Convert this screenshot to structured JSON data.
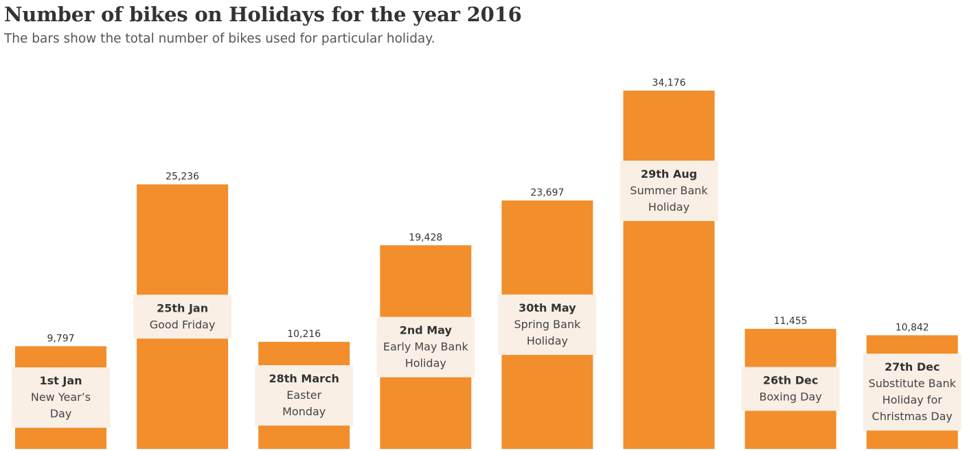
{
  "title": "Number of bikes on Holidays for the year 2016",
  "subtitle": "The bars show the total number of bikes used for particular holiday.",
  "colors": {
    "bar": "#f28e2b",
    "label_box": "#f9efe5",
    "text": "#333333"
  },
  "chart_data": {
    "type": "bar",
    "title": "Number of bikes on Holidays for the year 2016",
    "subtitle": "The bars show the total number of bikes used for particular holiday.",
    "xlabel": "",
    "ylabel": "",
    "ylim": [
      0,
      34176
    ],
    "grid": false,
    "categories": [
      {
        "date": "1st Jan",
        "name": [
          "New Year’s",
          "Day"
        ]
      },
      {
        "date": "25th Jan",
        "name": [
          "Good Friday"
        ]
      },
      {
        "date": "28th March",
        "name": [
          "Easter",
          "Monday"
        ]
      },
      {
        "date": "2nd May",
        "name": [
          "Early May Bank",
          "Holiday"
        ]
      },
      {
        "date": "30th May",
        "name": [
          "Spring Bank",
          "Holiday"
        ]
      },
      {
        "date": "29th Aug",
        "name": [
          "Summer Bank",
          "Holiday"
        ]
      },
      {
        "date": "26th Dec",
        "name": [
          "Boxing Day"
        ]
      },
      {
        "date": "27th Dec",
        "name": [
          "Substitute Bank",
          "Holiday for",
          "Christmas Day"
        ]
      }
    ],
    "values": [
      9797,
      25236,
      10216,
      19428,
      23697,
      34176,
      11455,
      10842
    ],
    "value_labels": [
      "9,797",
      "25,236",
      "10,216",
      "19,428",
      "23,697",
      "34,176",
      "11,455",
      "10,842"
    ]
  }
}
